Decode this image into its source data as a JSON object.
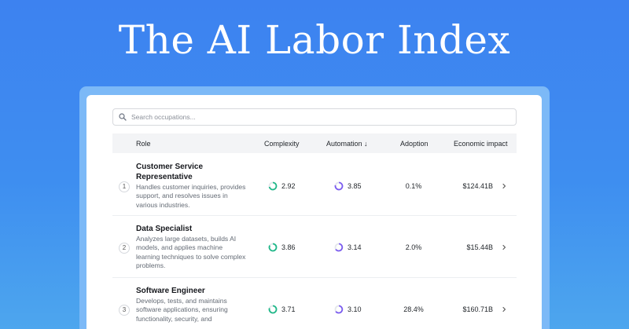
{
  "hero": {
    "title": "The AI Labor Index"
  },
  "search": {
    "placeholder": "Search occupations..."
  },
  "table": {
    "headers": {
      "role": "Role",
      "complexity": "Complexity",
      "automation": "Automation ↓",
      "adoption": "Adoption",
      "impact": "Economic impact"
    },
    "rows": [
      {
        "rank": "1",
        "title": "Customer Service Representative",
        "description": "Handles customer inquiries, provides support, and resolves issues in various industries.",
        "complexity": "2.92",
        "automation": "3.85",
        "adoption": "0.1%",
        "impact": "$124.41B"
      },
      {
        "rank": "2",
        "title": "Data Specialist",
        "description": "Analyzes large datasets, builds AI models, and applies machine learning techniques to solve complex problems.",
        "complexity": "3.86",
        "automation": "3.14",
        "adoption": "2.0%",
        "impact": "$15.44B"
      },
      {
        "rank": "3",
        "title": "Software Engineer",
        "description": "Develops, tests, and maintains software applications, ensuring functionality, security, and",
        "complexity": "3.71",
        "automation": "3.10",
        "adoption": "28.4%",
        "impact": "$160.71B"
      }
    ]
  },
  "colors": {
    "complexity_ring": "#1fb889",
    "automation_ring": "#7b5cf0",
    "ring_track": "#e4e7eb"
  }
}
